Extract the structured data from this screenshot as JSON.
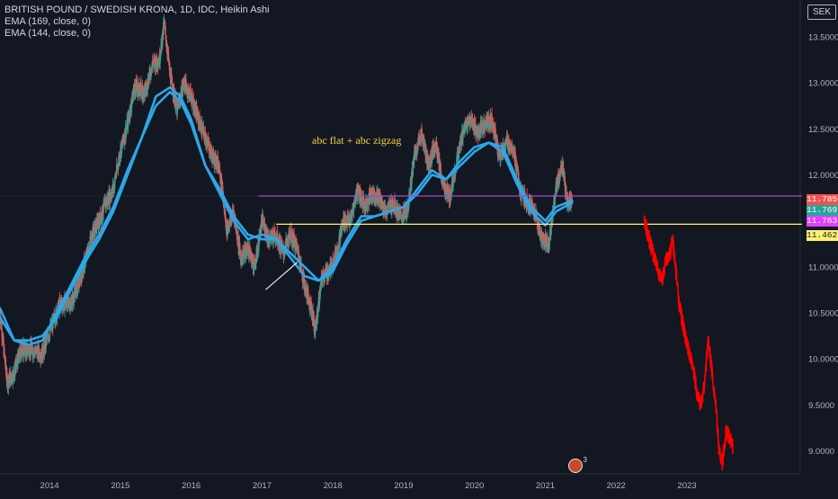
{
  "legend": {
    "line1": "BRITISH POUND / SWEDISH KRONA, 1D, IDC, Heikin Ashi",
    "line2": "EMA (169, close, 0)",
    "line3": "EMA (144, close, 0)"
  },
  "annotation": "abc flat + abc zigzag",
  "unit": "SEK",
  "event_count": "3",
  "colors": {
    "background": "#131722",
    "up": "#26a69a",
    "down": "#ef5350",
    "ema": "#2ea6e8",
    "forecast": "#ff0000",
    "purple_line": "#b03ed6",
    "yellow_line": "#fff176",
    "axis_text": "#b2b5be"
  },
  "chart_data": {
    "type": "candlestick",
    "title": "BRITISH POUND / SWEDISH KRONA, 1D, IDC, Heikin Ashi",
    "y_axis": {
      "unit": "SEK",
      "ticks": [
        "13.5000",
        "13.0000",
        "12.5000",
        "12.0000",
        "11.5000",
        "11.0000",
        "10.5000",
        "10.0000",
        "9.5000",
        "9.0000"
      ],
      "tick_values": [
        13.5,
        13.0,
        12.5,
        12.0,
        11.5,
        11.0,
        10.5,
        10.0,
        9.5,
        9.0
      ],
      "range": [
        8.75,
        13.9
      ]
    },
    "x_axis": {
      "ticks": [
        "2014",
        "2015",
        "2016",
        "2017",
        "2018",
        "2019",
        "2020",
        "2021",
        "2022",
        "2023"
      ],
      "tick_values": [
        2014,
        2015,
        2016,
        2017,
        2018,
        2019,
        2020,
        2021,
        2022,
        2023
      ],
      "range": [
        2013.3,
        2024.6
      ]
    },
    "price_path": [
      [
        2013.3,
        10.5
      ],
      [
        2013.4,
        9.75
      ],
      [
        2013.5,
        9.85
      ],
      [
        2013.6,
        10.1
      ],
      [
        2013.75,
        10.1
      ],
      [
        2013.9,
        10.05
      ],
      [
        2014.0,
        10.3
      ],
      [
        2014.15,
        10.6
      ],
      [
        2014.3,
        10.6
      ],
      [
        2014.4,
        10.8
      ],
      [
        2014.5,
        11.05
      ],
      [
        2014.6,
        11.35
      ],
      [
        2014.7,
        11.5
      ],
      [
        2014.8,
        11.7
      ],
      [
        2014.9,
        11.85
      ],
      [
        2015.0,
        12.25
      ],
      [
        2015.1,
        12.55
      ],
      [
        2015.2,
        12.95
      ],
      [
        2015.35,
        12.9
      ],
      [
        2015.45,
        13.2
      ],
      [
        2015.55,
        13.25
      ],
      [
        2015.62,
        13.65
      ],
      [
        2015.7,
        13.1
      ],
      [
        2015.8,
        12.7
      ],
      [
        2015.9,
        13.0
      ],
      [
        2016.0,
        12.85
      ],
      [
        2016.1,
        12.6
      ],
      [
        2016.2,
        12.4
      ],
      [
        2016.3,
        12.2
      ],
      [
        2016.4,
        12.1
      ],
      [
        2016.5,
        11.4
      ],
      [
        2016.6,
        11.6
      ],
      [
        2016.7,
        11.1
      ],
      [
        2016.8,
        11.2
      ],
      [
        2016.9,
        11.0
      ],
      [
        2017.0,
        11.5
      ],
      [
        2017.1,
        11.3
      ],
      [
        2017.2,
        11.35
      ],
      [
        2017.3,
        11.15
      ],
      [
        2017.4,
        11.35
      ],
      [
        2017.5,
        11.2
      ],
      [
        2017.6,
        10.8
      ],
      [
        2017.7,
        10.55
      ],
      [
        2017.75,
        10.3
      ],
      [
        2017.85,
        10.9
      ],
      [
        2017.95,
        10.95
      ],
      [
        2018.05,
        11.15
      ],
      [
        2018.15,
        11.5
      ],
      [
        2018.25,
        11.5
      ],
      [
        2018.35,
        11.85
      ],
      [
        2018.45,
        11.65
      ],
      [
        2018.55,
        11.8
      ],
      [
        2018.65,
        11.75
      ],
      [
        2018.75,
        11.6
      ],
      [
        2018.85,
        11.7
      ],
      [
        2018.95,
        11.55
      ],
      [
        2019.05,
        11.6
      ],
      [
        2019.15,
        12.2
      ],
      [
        2019.25,
        12.45
      ],
      [
        2019.35,
        12.1
      ],
      [
        2019.45,
        12.35
      ],
      [
        2019.55,
        11.9
      ],
      [
        2019.65,
        11.75
      ],
      [
        2019.75,
        12.15
      ],
      [
        2019.85,
        12.5
      ],
      [
        2019.95,
        12.6
      ],
      [
        2020.05,
        12.45
      ],
      [
        2020.15,
        12.55
      ],
      [
        2020.25,
        12.6
      ],
      [
        2020.35,
        12.2
      ],
      [
        2020.45,
        12.35
      ],
      [
        2020.55,
        12.3
      ],
      [
        2020.65,
        11.8
      ],
      [
        2020.75,
        11.7
      ],
      [
        2020.85,
        11.6
      ],
      [
        2020.95,
        11.3
      ],
      [
        2021.05,
        11.25
      ],
      [
        2021.15,
        11.85
      ],
      [
        2021.25,
        12.1
      ],
      [
        2021.3,
        11.7
      ],
      [
        2021.38,
        11.75
      ]
    ],
    "ema_169": [
      [
        2013.3,
        10.55
      ],
      [
        2013.5,
        10.2
      ],
      [
        2013.7,
        10.15
      ],
      [
        2013.9,
        10.2
      ],
      [
        2014.1,
        10.5
      ],
      [
        2014.3,
        10.8
      ],
      [
        2014.5,
        11.1
      ],
      [
        2014.7,
        11.35
      ],
      [
        2014.9,
        11.65
      ],
      [
        2015.1,
        12.05
      ],
      [
        2015.3,
        12.4
      ],
      [
        2015.5,
        12.75
      ],
      [
        2015.7,
        12.9
      ],
      [
        2015.85,
        12.8
      ],
      [
        2016.0,
        12.55
      ],
      [
        2016.2,
        12.1
      ],
      [
        2016.4,
        11.85
      ],
      [
        2016.6,
        11.55
      ],
      [
        2016.8,
        11.35
      ],
      [
        2017.0,
        11.3
      ],
      [
        2017.2,
        11.3
      ],
      [
        2017.4,
        11.15
      ],
      [
        2017.6,
        11.0
      ],
      [
        2017.8,
        10.85
      ],
      [
        2018.0,
        10.95
      ],
      [
        2018.2,
        11.25
      ],
      [
        2018.4,
        11.5
      ],
      [
        2018.6,
        11.55
      ],
      [
        2018.8,
        11.6
      ],
      [
        2019.0,
        11.65
      ],
      [
        2019.2,
        11.8
      ],
      [
        2019.4,
        12.0
      ],
      [
        2019.6,
        11.95
      ],
      [
        2019.8,
        12.1
      ],
      [
        2020.0,
        12.25
      ],
      [
        2020.2,
        12.35
      ],
      [
        2020.4,
        12.3
      ],
      [
        2020.6,
        11.95
      ],
      [
        2020.8,
        11.65
      ],
      [
        2021.0,
        11.5
      ],
      [
        2021.15,
        11.65
      ],
      [
        2021.38,
        11.72
      ]
    ],
    "ema_144": [
      [
        2013.3,
        10.45
      ],
      [
        2013.5,
        10.2
      ],
      [
        2013.7,
        10.2
      ],
      [
        2013.9,
        10.25
      ],
      [
        2014.1,
        10.45
      ],
      [
        2014.3,
        10.75
      ],
      [
        2014.5,
        11.05
      ],
      [
        2014.7,
        11.3
      ],
      [
        2014.9,
        11.6
      ],
      [
        2015.1,
        12.0
      ],
      [
        2015.3,
        12.4
      ],
      [
        2015.5,
        12.85
      ],
      [
        2015.7,
        12.95
      ],
      [
        2015.85,
        12.85
      ],
      [
        2016.0,
        12.6
      ],
      [
        2016.2,
        12.1
      ],
      [
        2016.4,
        11.8
      ],
      [
        2016.6,
        11.5
      ],
      [
        2016.8,
        11.3
      ],
      [
        2017.0,
        11.35
      ],
      [
        2017.2,
        11.3
      ],
      [
        2017.4,
        11.1
      ],
      [
        2017.6,
        10.9
      ],
      [
        2017.8,
        10.85
      ],
      [
        2018.0,
        11.0
      ],
      [
        2018.2,
        11.3
      ],
      [
        2018.4,
        11.55
      ],
      [
        2018.6,
        11.55
      ],
      [
        2018.8,
        11.6
      ],
      [
        2019.0,
        11.65
      ],
      [
        2019.2,
        11.85
      ],
      [
        2019.4,
        12.05
      ],
      [
        2019.6,
        11.95
      ],
      [
        2019.8,
        12.15
      ],
      [
        2020.0,
        12.3
      ],
      [
        2020.2,
        12.35
      ],
      [
        2020.4,
        12.25
      ],
      [
        2020.6,
        11.9
      ],
      [
        2020.8,
        11.6
      ],
      [
        2021.0,
        11.45
      ],
      [
        2021.15,
        11.6
      ],
      [
        2021.38,
        11.7
      ]
    ],
    "forecast_path": [
      [
        2022.4,
        11.5
      ],
      [
        2022.5,
        11.2
      ],
      [
        2022.6,
        10.95
      ],
      [
        2022.65,
        10.85
      ],
      [
        2022.7,
        11.05
      ],
      [
        2022.75,
        11.1
      ],
      [
        2022.8,
        11.3
      ],
      [
        2022.85,
        10.9
      ],
      [
        2022.9,
        10.55
      ],
      [
        2022.95,
        10.35
      ],
      [
        2023.0,
        10.15
      ],
      [
        2023.05,
        10.0
      ],
      [
        2023.1,
        9.85
      ],
      [
        2023.15,
        9.6
      ],
      [
        2023.2,
        9.5
      ],
      [
        2023.25,
        9.75
      ],
      [
        2023.3,
        10.2
      ],
      [
        2023.35,
        9.9
      ],
      [
        2023.4,
        9.55
      ],
      [
        2023.45,
        9.05
      ],
      [
        2023.5,
        8.85
      ],
      [
        2023.55,
        9.2
      ],
      [
        2023.6,
        9.15
      ],
      [
        2023.65,
        9.05
      ]
    ],
    "horizontal_lines": [
      {
        "value": 11.7693,
        "x_start": 2016.95,
        "color": "purple"
      },
      {
        "value": 11.4628,
        "x_start": 2017.2,
        "color": "yellow"
      }
    ],
    "trend_line": [
      [
        2017.05,
        10.75
      ],
      [
        2017.5,
        11.05
      ]
    ],
    "price_labels": [
      {
        "text": "11.7850",
        "value": 11.785,
        "bg": "#ef5350",
        "fg": "#ffffff"
      },
      {
        "text": "11.7693",
        "value": 11.7693,
        "bg": "#26a69a",
        "fg": "#ffffff"
      },
      {
        "text": "11.7630",
        "value": 11.763,
        "bg": "#e040fb",
        "fg": "#ffffff"
      },
      {
        "text": "11.4628",
        "value": 11.4628,
        "bg": "#fff176",
        "fg": "#131722"
      }
    ]
  }
}
